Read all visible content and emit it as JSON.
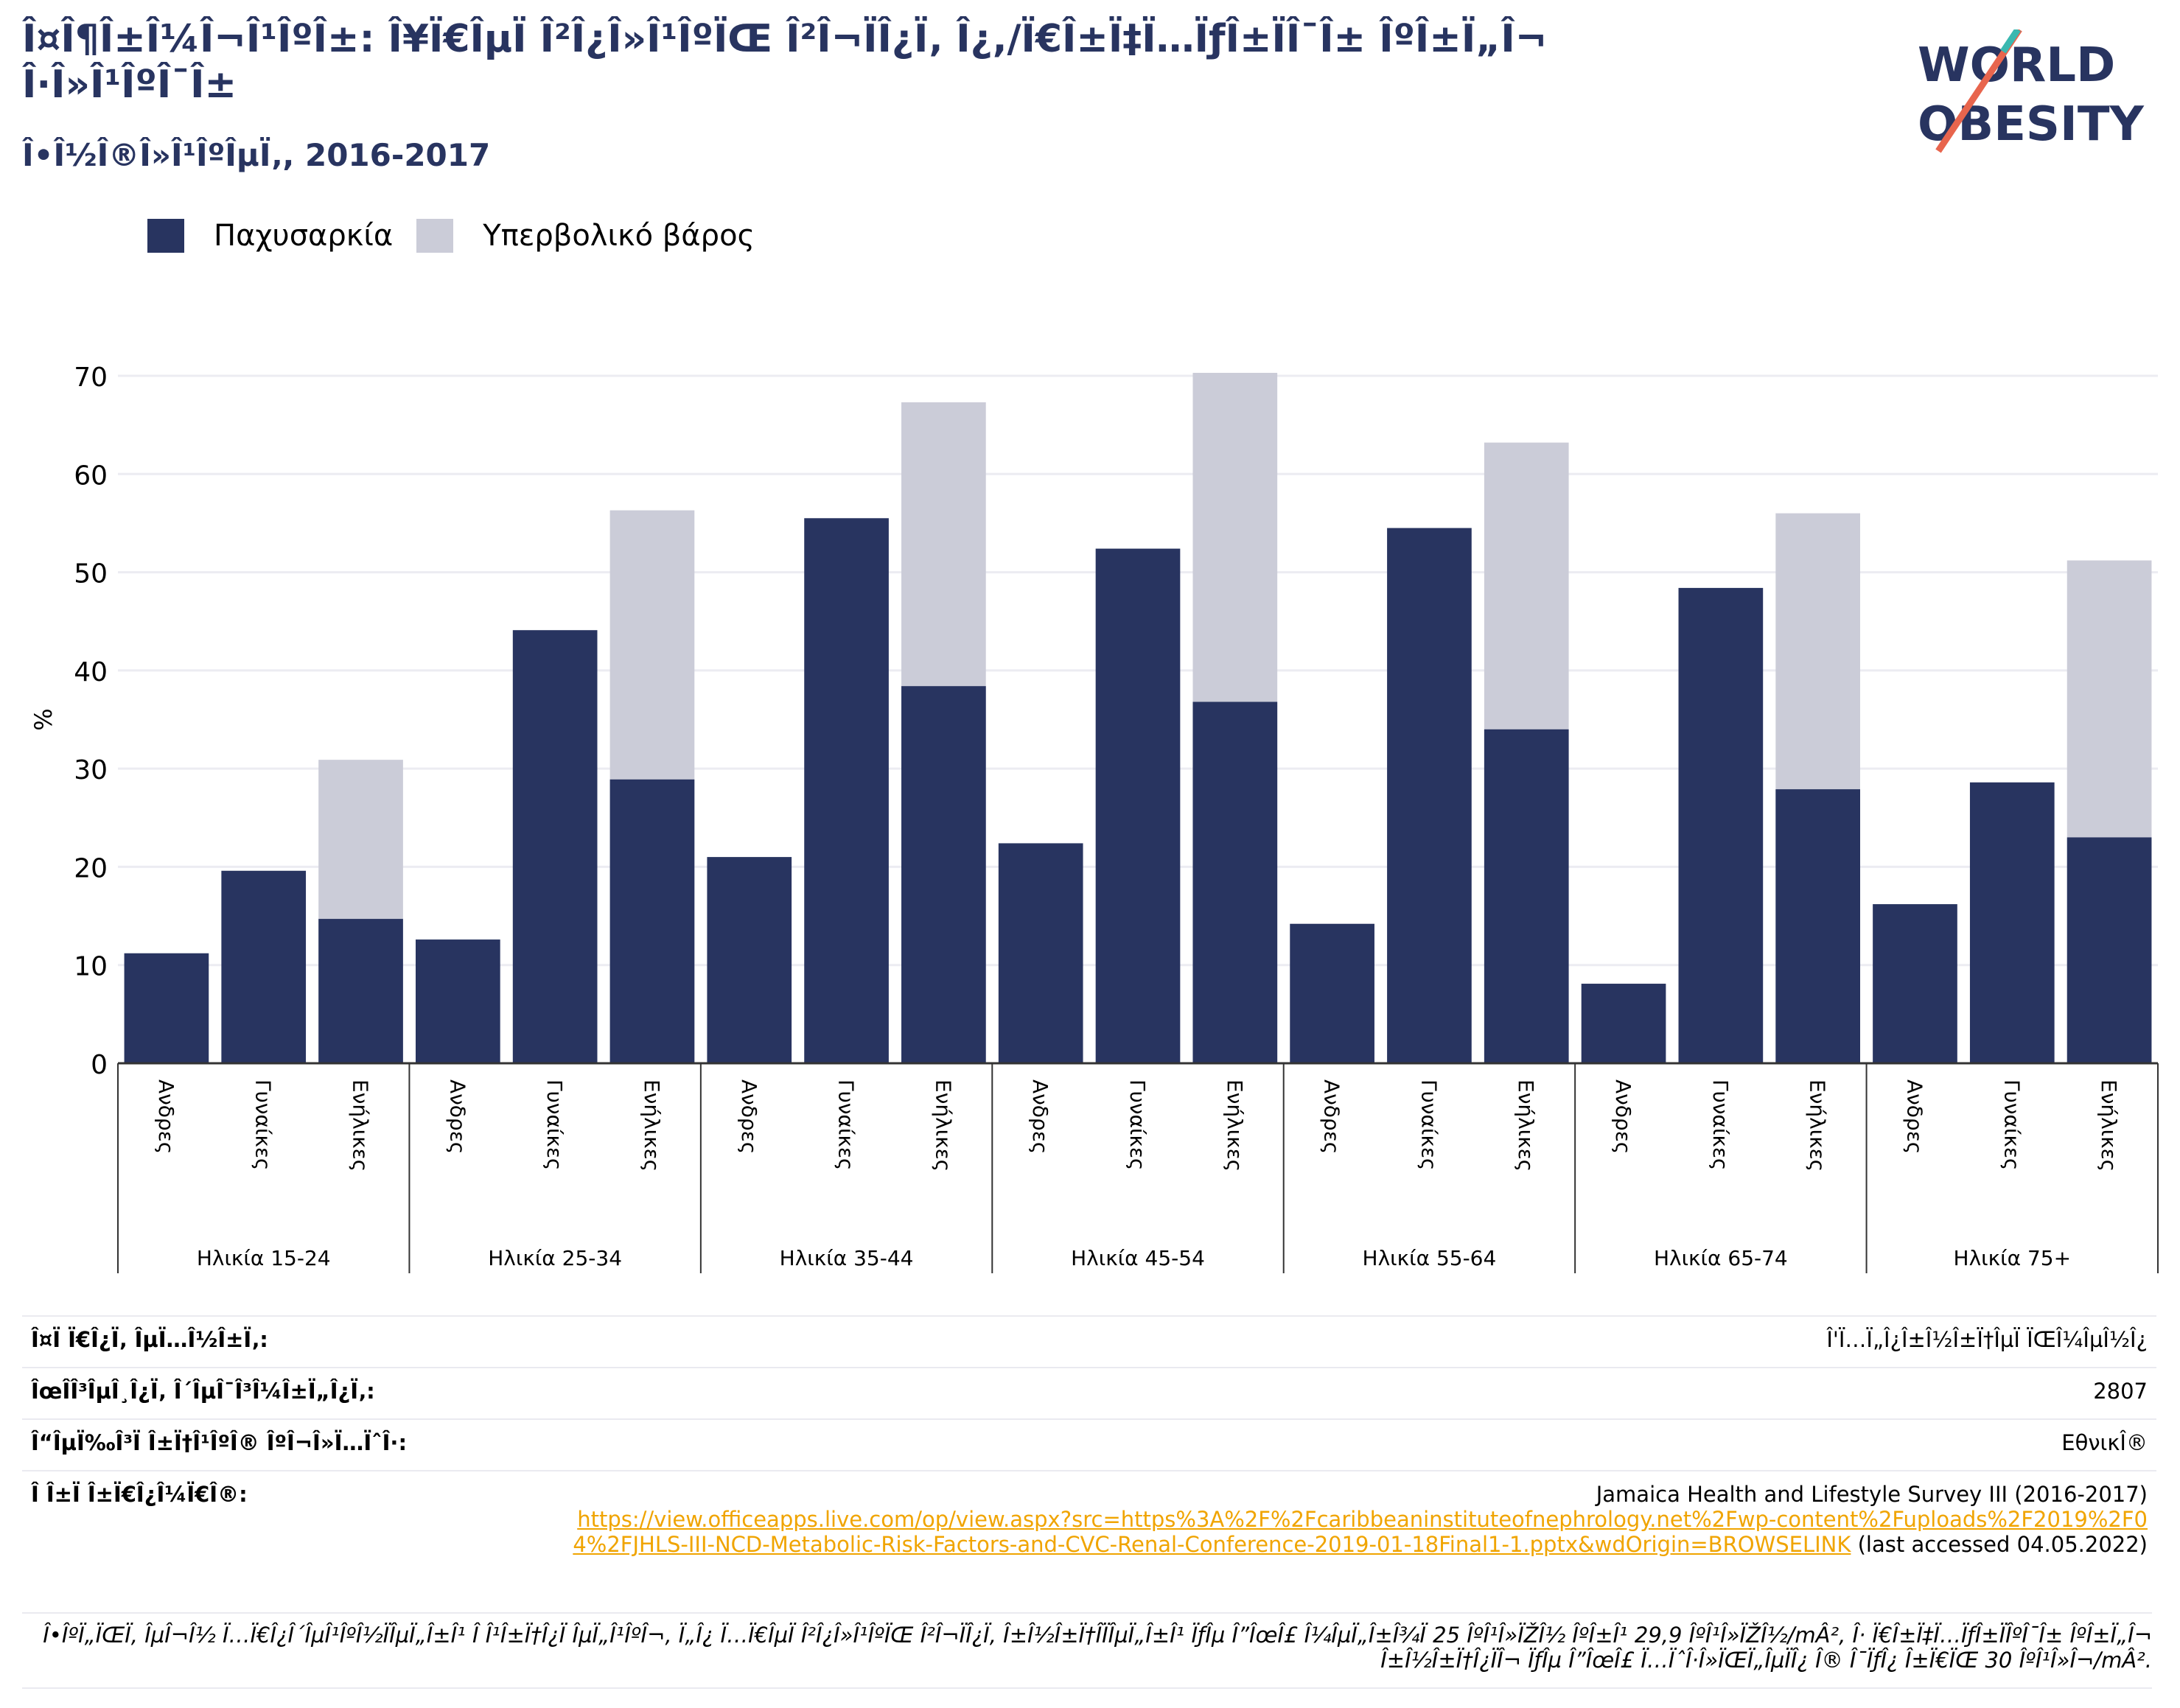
{
  "title": "Î¤Î¶Î±Î¼Î¬Î¹ÎºÎ±: Î¥Ï€ÎµÏ Î²Î¿Î»Î¹ÎºÏŒ Î²Î¬ÏÎ¿Ï‚ Î¿,/Ï€Î±Ï‡Ï…ÏƒÎ±ÏÎ¯Î± ÎºÎ±Ï„Î¬ Î·Î»Î¹ÎºÎ¯Î±",
  "subtitle": "Î•Î½Î®Î»Î¹ÎºÎµÏ‚, 2016-2017",
  "logo": {
    "line1": "WORLD",
    "line2": "OBESITY",
    "accent": "#e8654d",
    "accent2": "#3ab8b0",
    "color": "#283460"
  },
  "legend": [
    {
      "label": "Παχυσαρκία",
      "color": "#283460"
    },
    {
      "label": "Υπερβολικό βάρος",
      "color": "#cbccd8"
    }
  ],
  "chart_data": {
    "type": "bar",
    "ylabel": "%",
    "ylim": [
      0,
      70
    ],
    "yticks": [
      0,
      10,
      20,
      30,
      40,
      50,
      60,
      70
    ],
    "grid": true,
    "legend_position": "top-left",
    "groups": [
      "Ηλικία 15-24",
      "Ηλικία 25-34",
      "Ηλικία 35-44",
      "Ηλικία 45-54",
      "Ηλικία 55-64",
      "Ηλικία 65-74",
      "Ηλικία 75+"
    ],
    "categories": [
      "Ανδρες",
      "Γυναίκες",
      "Ενήλικες"
    ],
    "series": [
      {
        "name": "Παχυσαρκία",
        "color": "#283460",
        "values": [
          [
            11.2,
            19.6,
            14.7
          ],
          [
            12.6,
            44.1,
            28.9
          ],
          [
            21.0,
            55.5,
            38.4
          ],
          [
            22.4,
            52.4,
            36.8
          ],
          [
            14.2,
            54.5,
            34.0
          ],
          [
            8.1,
            48.4,
            27.9
          ],
          [
            16.2,
            28.6,
            23.0
          ]
        ]
      },
      {
        "name": "Υπερβολικό βάρος",
        "color": "#cbccd8",
        "values": [
          [
            null,
            null,
            30.9
          ],
          [
            null,
            null,
            56.3
          ],
          [
            null,
            null,
            67.3
          ],
          [
            null,
            null,
            70.3
          ],
          [
            null,
            null,
            63.2
          ],
          [
            null,
            null,
            56.0
          ],
          [
            null,
            null,
            51.2
          ]
        ]
      }
    ]
  },
  "meta": [
    {
      "key": "Î¤Ï Ï€Î¿Ï‚ ÎµÏ…Î½Î±Ï‚:",
      "value": "Î'Ï…Ï„Î¿Î±Î½Î±Ï†ÎµÏ ÏŒÎ¼ÎµÎ½Î¿"
    },
    {
      "key": "ÎœÎ­Î³ÎµÎ¸Î¿Ï‚ Î´ÎµÎ¯Î³Î¼Î±Ï„Î¿Ï‚:",
      "value": "2807"
    },
    {
      "key": "Î“ÎµÏ‰Î³Ï Î±Ï†Î¹ÎºÎ® ÎºÎ¬Î»Ï…ÏˆÎ·:",
      "value": "ΕθνικÎ®"
    }
  ],
  "source": {
    "key": "Î Î±Ï Î±Ï€Î¿Î¼Ï€Î®:",
    "name": "Jamaica Health and Lifestyle Survey III (2016-2017)",
    "url": "https://view.officeapps.live.com/op/view.aspx?src=https%3A%2F%2Fcaribbeaninstituteofnephrology.net%2Fwp-content%2Fuploads%2F2019%2F04%2FJHLS-III-NCD-Metabolic-Risk-Factors-and-CVC-Renal-Conference-2019-01-18Final1-1.pptx&wdOrigin=BROWSELINK",
    "accessed": "(last accessed 04.05.2022)"
  },
  "note": "Î•ÎºÏ„ÏŒÏ‚ ÎµÎ¬Î½ Ï…Ï€Î¿Î´ÎµÎ¹ÎºÎ½ÏÎµÏ„Î±Î¹ Î Î¹Î±Ï†Î¿Ï ÎµÏ„Î¹ÎºÎ¬, Ï„Î¿ Ï…Ï€ÎµÏ Î²Î¿Î»Î¹ÎºÏŒ Î²Î¬ÏÎ¿Ï‚ Î±Î½Î±Ï†Î­ÏÎµÏ„Î±Î¹ ÏƒÎµ Î”ÎœÎ£ Î¼ÎµÏ„Î±Î¾Ï 25 ÎºÎ¹Î»ÏŽÎ½ ÎºÎ±Î¹ 29,9 ÎºÎ¹Î»ÏŽÎ½/mÂ², Î· Ï€Î±Ï‡Ï…ÏƒÎ±ÏÎºÎ¯Î± ÎºÎ±Ï„Î¬ Î±Î½Î±Ï†Î¿ÏÎ¬ ÏƒÎµ Î”ÎœÎ£ Ï…ÏˆÎ·Î»ÏŒÏ„ÎµÏÎ¿ Î® Î¯ÏƒÎ¿ Î±Ï€ÏŒ 30 ÎºÎ¹Î»Î¬/mÂ²."
}
